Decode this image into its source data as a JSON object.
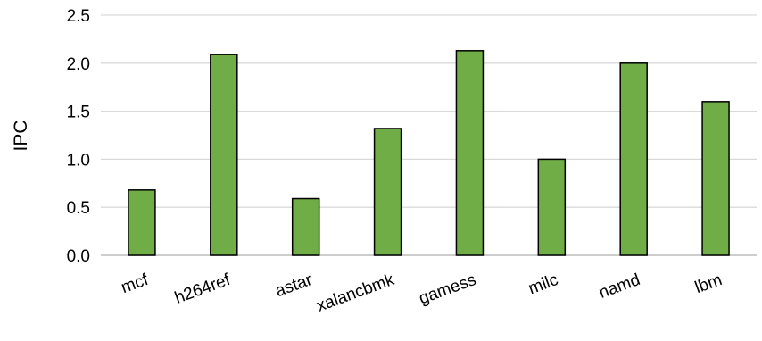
{
  "chart_data": {
    "type": "bar",
    "title": "",
    "xlabel": "",
    "ylabel": "IPC",
    "categories": [
      "mcf",
      "h264ref",
      "astar",
      "xalancbmk",
      "gamess",
      "milc",
      "namd",
      "lbm"
    ],
    "values": [
      0.68,
      2.09,
      0.59,
      1.32,
      2.13,
      1.0,
      2.0,
      1.6
    ],
    "ylim": [
      0,
      2.5
    ],
    "yticks": [
      "0.0",
      "0.5",
      "1.0",
      "1.5",
      "2.0",
      "2.5"
    ],
    "grid": "horizontal",
    "legend": "none",
    "bar_color": "#70AD47",
    "bar_edge_color": "#000000",
    "grid_color": "#D9D9D9"
  }
}
